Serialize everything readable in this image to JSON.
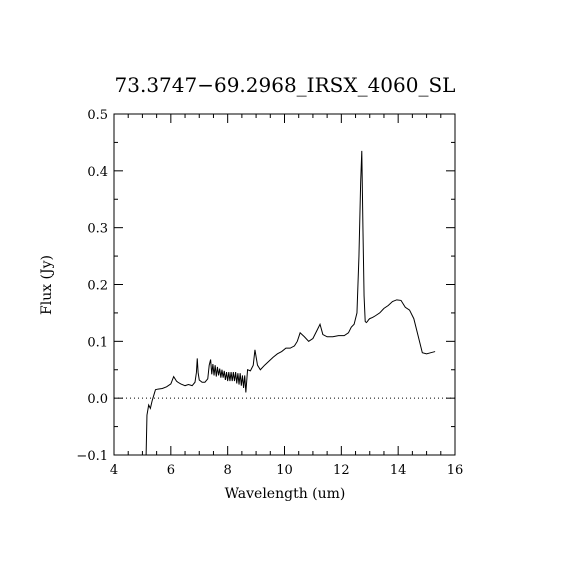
{
  "chart_data": {
    "type": "line",
    "title": "73.3747−69.2968_IRSX_4060_SL",
    "xlabel": "Wavelength (um)",
    "ylabel": "Flux (Jy)",
    "xlim": [
      4,
      16
    ],
    "ylim": [
      -0.1,
      0.5
    ],
    "xticks": [
      4,
      6,
      8,
      10,
      12,
      14,
      16
    ],
    "xtick_labels": [
      "4",
      "6",
      "8",
      "10",
      "12",
      "14",
      "16"
    ],
    "yticks": [
      -0.1,
      0.0,
      0.1,
      0.2,
      0.3,
      0.4,
      0.5
    ],
    "ytick_labels": [
      "−0.1",
      "0.0",
      "0.1",
      "0.2",
      "0.3",
      "0.4",
      "0.5"
    ],
    "grid": false,
    "reference_line": {
      "y": 0.0,
      "style": "dotted"
    },
    "series": [
      {
        "x": [
          5.13,
          5.16,
          5.22,
          5.28,
          5.34,
          5.4,
          5.46,
          5.55,
          5.7,
          5.85,
          6.0,
          6.1,
          6.2,
          6.25,
          6.35,
          6.5,
          6.62,
          6.75,
          6.85,
          6.9,
          6.93,
          6.96,
          7.0,
          7.1,
          7.2,
          7.3,
          7.35,
          7.4,
          7.44,
          7.48,
          7.52,
          7.56,
          7.6,
          7.64,
          7.68,
          7.72,
          7.76,
          7.8,
          7.84,
          7.88,
          7.92,
          7.96,
          8.0,
          8.04,
          8.08,
          8.12,
          8.16,
          8.2,
          8.24,
          8.28,
          8.32,
          8.36,
          8.4,
          8.44,
          8.48,
          8.52,
          8.56,
          8.6,
          8.64,
          8.7,
          8.8,
          8.9,
          8.96,
          9.05,
          9.15,
          9.3,
          9.45,
          9.6,
          9.75,
          9.9,
          10.05,
          10.2,
          10.35,
          10.45,
          10.55,
          10.7,
          10.85,
          11.0,
          11.15,
          11.25,
          11.35,
          11.5,
          11.7,
          11.9,
          12.1,
          12.25,
          12.35,
          12.45,
          12.55,
          12.62,
          12.68,
          12.72,
          12.76,
          12.8,
          12.84,
          12.88,
          12.92,
          12.96,
          13.0,
          13.1,
          13.2,
          13.35,
          13.5,
          13.65,
          13.8,
          13.95,
          14.1,
          14.25,
          14.4,
          14.55,
          14.7,
          14.85,
          15.0,
          15.15,
          15.3
        ],
        "y": [
          -0.1,
          -0.03,
          -0.012,
          -0.018,
          -0.005,
          0.005,
          0.015,
          0.016,
          0.017,
          0.02,
          0.025,
          0.038,
          0.03,
          0.028,
          0.025,
          0.022,
          0.024,
          0.022,
          0.028,
          0.045,
          0.07,
          0.045,
          0.032,
          0.028,
          0.028,
          0.034,
          0.058,
          0.068,
          0.042,
          0.06,
          0.04,
          0.058,
          0.038,
          0.055,
          0.04,
          0.052,
          0.036,
          0.05,
          0.036,
          0.048,
          0.032,
          0.046,
          0.03,
          0.046,
          0.03,
          0.046,
          0.03,
          0.046,
          0.03,
          0.046,
          0.026,
          0.044,
          0.024,
          0.044,
          0.022,
          0.04,
          0.018,
          0.04,
          0.01,
          0.05,
          0.048,
          0.058,
          0.085,
          0.058,
          0.05,
          0.058,
          0.065,
          0.072,
          0.078,
          0.082,
          0.088,
          0.088,
          0.092,
          0.1,
          0.115,
          0.108,
          0.1,
          0.105,
          0.12,
          0.13,
          0.112,
          0.108,
          0.108,
          0.11,
          0.11,
          0.115,
          0.125,
          0.13,
          0.15,
          0.25,
          0.38,
          0.435,
          0.3,
          0.18,
          0.135,
          0.133,
          0.135,
          0.138,
          0.14,
          0.142,
          0.145,
          0.15,
          0.158,
          0.163,
          0.17,
          0.173,
          0.172,
          0.16,
          0.155,
          0.14,
          0.11,
          0.08,
          0.078,
          0.08,
          0.082
        ]
      }
    ]
  }
}
